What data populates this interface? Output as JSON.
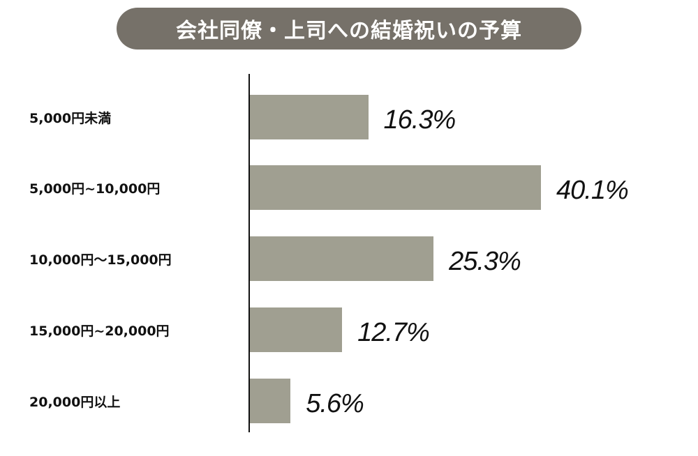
{
  "title": "会社同僚・上司への結婚祝いの予算",
  "colors": {
    "title_background": "#767169",
    "title_text": "#ffffff",
    "bar": "#a09f91",
    "axis": "#111111",
    "text": "#111111"
  },
  "rows": [
    {
      "label": "5,000円未満",
      "value": 16.3,
      "value_label": "16.3%"
    },
    {
      "label": "5,000円~10,000円",
      "value": 40.1,
      "value_label": "40.1%"
    },
    {
      "label": "10,000円〜15,000円",
      "value": 25.3,
      "value_label": "25.3%"
    },
    {
      "label": "15,000円~20,000円",
      "value": 12.7,
      "value_label": "12.7%"
    },
    {
      "label": "20,000円以上",
      "value": 5.6,
      "value_label": "5.6%"
    }
  ],
  "chart_data": {
    "type": "bar",
    "orientation": "horizontal",
    "title": "会社同僚・上司への結婚祝いの予算",
    "categories": [
      "5,000円未満",
      "5,000円~10,000円",
      "10,000円〜15,000円",
      "15,000円~20,000円",
      "20,000円以上"
    ],
    "values": [
      16.3,
      40.1,
      25.3,
      12.7,
      5.6
    ],
    "unit": "%",
    "data_labels": [
      "16.3%",
      "40.1%",
      "25.3%",
      "12.7%",
      "5.6%"
    ],
    "xlabel": "",
    "ylabel": "",
    "xlim": [
      0,
      45
    ],
    "grid": false,
    "legend": null
  }
}
